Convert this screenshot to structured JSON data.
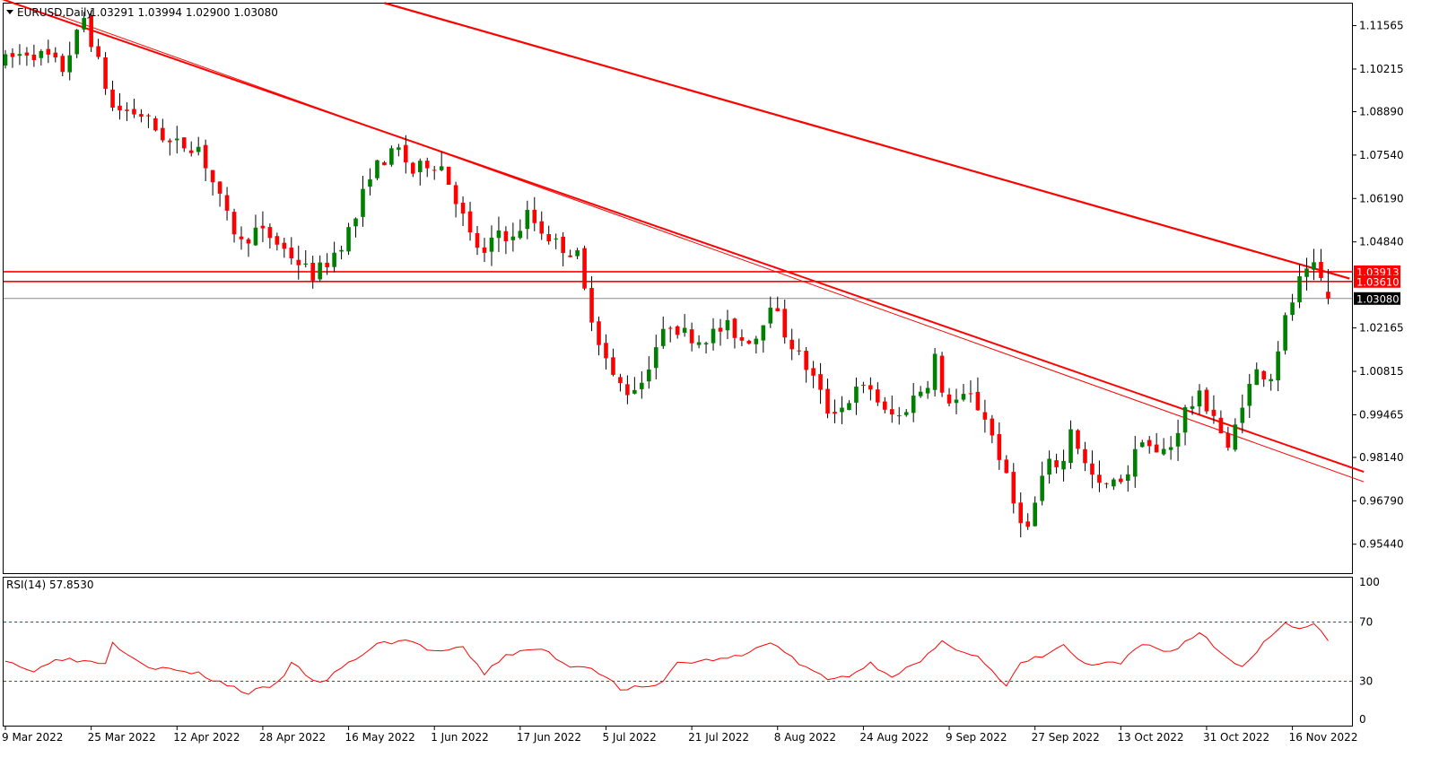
{
  "chart_data": {
    "type": "candlestick",
    "symbol_title": "EURUSD,Daily",
    "ohlc_header": "1.03291 1.03994 1.02900 1.03080",
    "last_price": {
      "value": 1.0308,
      "label": "1.03080"
    },
    "price_axis": {
      "ylim": [
        0.9454,
        1.1225
      ],
      "ticks": [
        {
          "value": 1.11565,
          "label": "1.11565"
        },
        {
          "value": 1.10215,
          "label": "1.10215"
        },
        {
          "value": 1.0889,
          "label": "1.08890"
        },
        {
          "value": 1.0754,
          "label": "1.07540"
        },
        {
          "value": 1.0619,
          "label": "1.06190"
        },
        {
          "value": 1.0484,
          "label": "1.04840"
        },
        {
          "value": 1.02165,
          "label": "1.02165"
        },
        {
          "value": 1.00815,
          "label": "1.00815"
        },
        {
          "value": 0.99465,
          "label": "0.99465"
        },
        {
          "value": 0.9814,
          "label": "0.98140"
        },
        {
          "value": 0.9679,
          "label": "0.96790"
        },
        {
          "value": 0.9544,
          "label": "0.95440"
        }
      ]
    },
    "x_axis": {
      "bar_count": 185,
      "ticks": [
        {
          "index": 0,
          "label": "9 Mar 2022"
        },
        {
          "index": 12,
          "label": "25 Mar 2022"
        },
        {
          "index": 24,
          "label": "12 Apr 2022"
        },
        {
          "index": 36,
          "label": "28 Apr 2022"
        },
        {
          "index": 48,
          "label": "16 May 2022"
        },
        {
          "index": 60,
          "label": "1 Jun 2022"
        },
        {
          "index": 72,
          "label": "17 Jun 2022"
        },
        {
          "index": 84,
          "label": "5 Jul 2022"
        },
        {
          "index": 96,
          "label": "21 Jul 2022"
        },
        {
          "index": 108,
          "label": "8 Aug 2022"
        },
        {
          "index": 120,
          "label": "24 Aug 2022"
        },
        {
          "index": 132,
          "label": "9 Sep 2022"
        },
        {
          "index": 144,
          "label": "27 Sep 2022"
        },
        {
          "index": 156,
          "label": "13 Oct 2022"
        },
        {
          "index": 168,
          "label": "31 Oct 2022"
        },
        {
          "index": 180,
          "label": "16 Nov 2022"
        }
      ]
    },
    "horizontal_levels": [
      {
        "value": 1.03913,
        "label": "1.03913",
        "color": "#ff0000"
      },
      {
        "value": 1.0361,
        "label": "1.03610",
        "color": "#ff0000"
      }
    ],
    "trendlines": [
      {
        "color": "#ff0000",
        "width": 2,
        "from": {
          "index": -1,
          "value": 1.1243
        },
        "to": {
          "index": 190,
          "value": 0.9769
        }
      },
      {
        "color": "#ff0000",
        "width": 1,
        "from": {
          "index": 6,
          "value": 1.12
        },
        "to": {
          "index": 190,
          "value": 0.9738
        }
      },
      {
        "color": "#ff0000",
        "width": 2.2,
        "from": {
          "index": 53,
          "value": 1.1227
        },
        "to": {
          "index": 188,
          "value": 1.037
        }
      }
    ],
    "rsi": {
      "title": "RSI(14) 57.8530",
      "ylim": [
        0,
        100
      ],
      "ticks": [
        {
          "value": 100,
          "label": "100"
        },
        {
          "value": 70,
          "label": "70"
        },
        {
          "value": 30,
          "label": "30"
        },
        {
          "value": 0,
          "label": "0"
        }
      ],
      "levels": [
        70,
        30
      ],
      "anchors": [
        [
          0,
          45
        ],
        [
          4,
          36
        ],
        [
          7,
          46
        ],
        [
          10,
          44
        ],
        [
          14,
          43
        ],
        [
          15,
          56
        ],
        [
          20,
          40
        ],
        [
          27,
          35
        ],
        [
          34,
          22
        ],
        [
          38,
          28
        ],
        [
          40,
          42
        ],
        [
          44,
          28
        ],
        [
          48,
          42
        ],
        [
          52,
          55
        ],
        [
          56,
          58
        ],
        [
          60,
          50
        ],
        [
          64,
          52
        ],
        [
          67,
          35
        ],
        [
          70,
          48
        ],
        [
          75,
          52
        ],
        [
          79,
          40
        ],
        [
          82,
          40
        ],
        [
          86,
          25
        ],
        [
          91,
          26
        ],
        [
          94,
          42
        ],
        [
          98,
          44
        ],
        [
          103,
          47
        ],
        [
          107,
          57
        ],
        [
          111,
          42
        ],
        [
          115,
          31
        ],
        [
          118,
          34
        ],
        [
          121,
          42
        ],
        [
          124,
          34
        ],
        [
          128,
          43
        ],
        [
          131,
          56
        ],
        [
          136,
          47
        ],
        [
          140,
          26
        ],
        [
          142,
          42
        ],
        [
          145,
          47
        ],
        [
          148,
          54
        ],
        [
          151,
          41
        ],
        [
          156,
          42
        ],
        [
          159,
          55
        ],
        [
          163,
          50
        ],
        [
          167,
          63
        ],
        [
          171,
          45
        ],
        [
          173,
          40
        ],
        [
          176,
          56
        ],
        [
          179,
          70
        ],
        [
          181,
          66
        ],
        [
          183,
          68
        ],
        [
          186,
          52
        ],
        [
          189,
          64
        ],
        [
          190,
          57.85
        ]
      ]
    },
    "colors": {
      "bull": "#008000",
      "bear": "#ff0000",
      "wick": "#000000",
      "level": "#ff0000",
      "rsi_line": "#ff0000",
      "last_price_tag": "#000000"
    },
    "price_path_anchors": [
      [
        0,
        1.104
      ],
      [
        4,
        1.1075
      ],
      [
        7,
        1.1058
      ],
      [
        9,
        1.102
      ],
      [
        12,
        1.118
      ],
      [
        13,
        1.111
      ],
      [
        16,
        1.09
      ],
      [
        20,
        1.088
      ],
      [
        24,
        1.079
      ],
      [
        28,
        1.078
      ],
      [
        32,
        1.056
      ],
      [
        34,
        1.048
      ],
      [
        36,
        1.052
      ],
      [
        38,
        1.05
      ],
      [
        40,
        1.046
      ],
      [
        44,
        1.038
      ],
      [
        46,
        1.042
      ],
      [
        48,
        1.048
      ],
      [
        50,
        1.056
      ],
      [
        52,
        1.07
      ],
      [
        54,
        1.074
      ],
      [
        56,
        1.077
      ],
      [
        58,
        1.07
      ],
      [
        60,
        1.073
      ],
      [
        62,
        1.072
      ],
      [
        64,
        1.062
      ],
      [
        66,
        1.05
      ],
      [
        68,
        1.044
      ],
      [
        70,
        1.052
      ],
      [
        72,
        1.049
      ],
      [
        74,
        1.057
      ],
      [
        76,
        1.052
      ],
      [
        78,
        1.048
      ],
      [
        81,
        1.044
      ],
      [
        82,
        1.033
      ],
      [
        84,
        1.018
      ],
      [
        86,
        1.006
      ],
      [
        88,
        1.002
      ],
      [
        90,
        1.005
      ],
      [
        92,
        1.016
      ],
      [
        94,
        1.023
      ],
      [
        96,
        1.02
      ],
      [
        98,
        1.018
      ],
      [
        100,
        1.02
      ],
      [
        102,
        1.022
      ],
      [
        104,
        1.018
      ],
      [
        106,
        1.019
      ],
      [
        108,
        1.03
      ],
      [
        110,
        1.02
      ],
      [
        112,
        1.013
      ],
      [
        114,
        1.006
      ],
      [
        116,
        0.996
      ],
      [
        118,
        0.997
      ],
      [
        120,
        1.002
      ],
      [
        122,
        1.003
      ],
      [
        124,
        0.995
      ],
      [
        126,
        0.994
      ],
      [
        128,
        1.0
      ],
      [
        130,
        1.005
      ],
      [
        131,
        1.013
      ],
      [
        132,
        1.0
      ],
      [
        134,
        0.999
      ],
      [
        136,
        1.0
      ],
      [
        138,
        0.994
      ],
      [
        140,
        0.982
      ],
      [
        142,
        0.967
      ],
      [
        144,
        0.959
      ],
      [
        146,
        0.975
      ],
      [
        147,
        0.979
      ],
      [
        149,
        0.98
      ],
      [
        150,
        0.991
      ],
      [
        152,
        0.979
      ],
      [
        154,
        0.972
      ],
      [
        156,
        0.973
      ],
      [
        158,
        0.977
      ],
      [
        160,
        0.988
      ],
      [
        162,
        0.982
      ],
      [
        164,
        0.985
      ],
      [
        166,
        0.996
      ],
      [
        168,
        1.0
      ],
      [
        170,
        0.995
      ],
      [
        172,
        0.983
      ],
      [
        174,
        0.999
      ],
      [
        176,
        1.008
      ],
      [
        178,
        1.007
      ],
      [
        180,
        1.024
      ],
      [
        182,
        1.036
      ],
      [
        184,
        1.04
      ],
      [
        186,
        1.033
      ],
      [
        188,
        1.027
      ],
      [
        190,
        1.04
      ],
      [
        192,
        1.036
      ],
      [
        194,
        1.0308
      ]
    ]
  }
}
